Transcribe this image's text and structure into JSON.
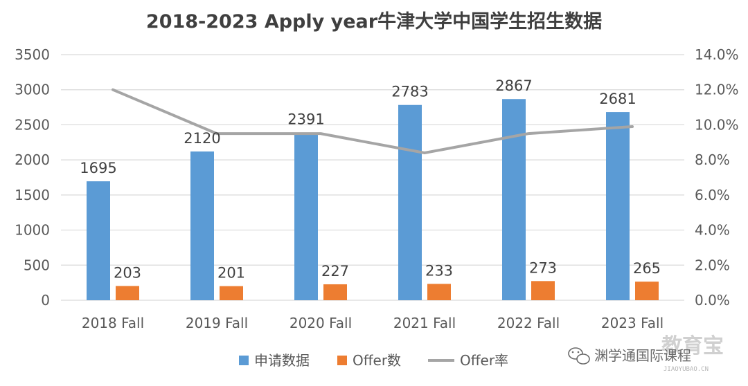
{
  "chart_data": {
    "type": "bar",
    "title": "2018-2023 Apply year牛津大学中国学生招生数据",
    "categories": [
      "2018 Fall",
      "2019 Fall",
      "2020 Fall",
      "2021 Fall",
      "2022 Fall",
      "2023 Fall"
    ],
    "series": [
      {
        "name": "申请数据",
        "type": "bar",
        "axis": "left",
        "color": "#5b9bd5",
        "values": [
          1695,
          2120,
          2391,
          2783,
          2867,
          2681
        ]
      },
      {
        "name": "Offer数",
        "type": "bar",
        "axis": "left",
        "color": "#ed7d31",
        "values": [
          203,
          201,
          227,
          233,
          273,
          265
        ]
      },
      {
        "name": "Offer率",
        "type": "line",
        "axis": "right",
        "color": "#a5a5a5",
        "values": [
          0.12,
          0.095,
          0.095,
          0.084,
          0.095,
          0.099
        ]
      }
    ],
    "y_left": {
      "min": 0,
      "max": 3500,
      "step": 500,
      "ticks": [
        "0",
        "500",
        "1000",
        "1500",
        "2000",
        "2500",
        "3000",
        "3500"
      ]
    },
    "y_right": {
      "min": 0,
      "max": 0.14,
      "step": 0.02,
      "ticks": [
        "0.0%",
        "2.0%",
        "4.0%",
        "6.0%",
        "8.0%",
        "10.0%",
        "12.0%",
        "14.0%"
      ]
    },
    "grid": true,
    "legend_position": "bottom",
    "data_labels": true
  },
  "watermark": {
    "text": "渊学通国际课程",
    "ghost_text": "教育宝",
    "url_text": "JIAOYUBAO.CN",
    "icon": "wechat-icon"
  }
}
